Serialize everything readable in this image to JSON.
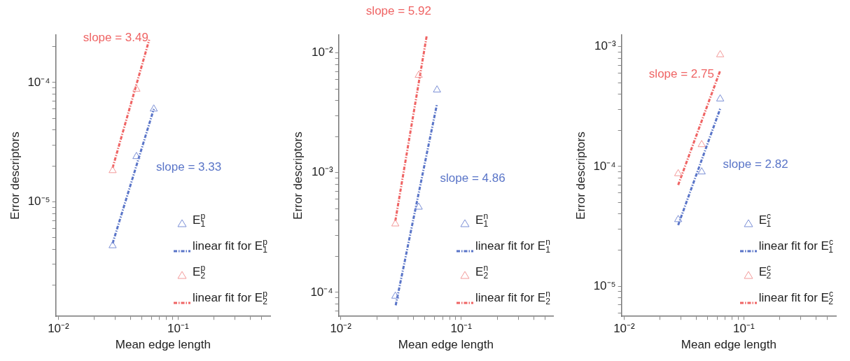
{
  "chart_data": [
    {
      "type": "scatter",
      "xlabel": "Mean edge length",
      "ylabel": "Error descriptors",
      "log": "xy",
      "grid": false,
      "legend": "bottom right",
      "xlim": [
        0.0095,
        0.59
      ],
      "ylim": [
        1.1e-06,
        0.00025
      ],
      "xticks": [
        {
          "value": 0.01,
          "label": "10⁻²"
        },
        {
          "value": 0.02,
          "label": null
        },
        {
          "value": 0.03,
          "label": null
        },
        {
          "value": 0.04,
          "label": null
        },
        {
          "value": 0.05,
          "label": null
        },
        {
          "value": 0.06,
          "label": null
        },
        {
          "value": 0.07,
          "label": null
        },
        {
          "value": 0.08,
          "label": null
        },
        {
          "value": 0.09,
          "label": null
        },
        {
          "value": 0.1,
          "label": "10⁻¹"
        },
        {
          "value": 0.2,
          "label": null
        },
        {
          "value": 0.3,
          "label": null
        },
        {
          "value": 0.4,
          "label": null
        },
        {
          "value": 0.5,
          "label": null
        }
      ],
      "yticks": [
        {
          "value": 2e-06,
          "label": null
        },
        {
          "value": 3e-06,
          "label": null
        },
        {
          "value": 4e-06,
          "label": null
        },
        {
          "value": 5e-06,
          "label": null
        },
        {
          "value": 6e-06,
          "label": null
        },
        {
          "value": 7e-06,
          "label": null
        },
        {
          "value": 8e-06,
          "label": null
        },
        {
          "value": 9e-06,
          "label": null
        },
        {
          "value": 1e-05,
          "label": "10⁻⁵"
        },
        {
          "value": 2e-05,
          "label": null
        },
        {
          "value": 3e-05,
          "label": null
        },
        {
          "value": 4e-05,
          "label": null
        },
        {
          "value": 5e-05,
          "label": null
        },
        {
          "value": 6e-05,
          "label": null
        },
        {
          "value": 7e-05,
          "label": null
        },
        {
          "value": 8e-05,
          "label": null
        },
        {
          "value": 9e-05,
          "label": null
        },
        {
          "value": 0.0001,
          "label": "10⁻⁴"
        },
        {
          "value": 0.0002,
          "label": null
        }
      ],
      "series": [
        {
          "name": "E$^{p}$$_{1}$",
          "type": "scatter",
          "marker": "triangle",
          "color": "#7b8fd6",
          "x": [
            0.0284,
            0.0449,
            0.0627
          ],
          "values": [
            4.3e-06,
            2.4e-05,
            6e-05
          ]
        },
        {
          "name": "linear fit for E$^{p}$$_{1}$",
          "type": "line",
          "line_style": "dashed",
          "color": "#5a75c8",
          "x": [
            0.0284,
            0.0627
          ],
          "values": [
            4.5e-06,
            6e-05
          ]
        },
        {
          "name": "E$^{p}$$_{2}$",
          "type": "scatter",
          "marker": "triangle",
          "color": "#f39a9a",
          "x": [
            0.0284,
            0.0449
          ],
          "values": [
            1.83e-05,
            8.8e-05
          ]
        },
        {
          "name": "linear fit for E$^{p}$$_{2}$",
          "type": "line",
          "line_style": "dashed",
          "color": "#ef6464",
          "x": [
            0.0284,
            0.0574
          ],
          "values": [
            1.93e-05,
            0.000228
          ]
        }
      ],
      "annotations": [
        "slope = 3.33",
        "slope = 3.49"
      ]
    },
    {
      "type": "scatter",
      "xlabel": "Mean edge length",
      "ylabel": "Error descriptors",
      "log": "xy",
      "grid": false,
      "legend": "bottom right",
      "xlim": [
        0.0096,
        0.58
      ],
      "ylim": [
        6.3e-05,
        0.0141
      ],
      "xticks": [
        {
          "value": 0.01,
          "label": "10⁻²"
        },
        {
          "value": 0.02,
          "label": null
        },
        {
          "value": 0.03,
          "label": null
        },
        {
          "value": 0.04,
          "label": null
        },
        {
          "value": 0.05,
          "label": null
        },
        {
          "value": 0.06,
          "label": null
        },
        {
          "value": 0.07,
          "label": null
        },
        {
          "value": 0.08,
          "label": null
        },
        {
          "value": 0.09,
          "label": null
        },
        {
          "value": 0.1,
          "label": "10⁻¹"
        },
        {
          "value": 0.2,
          "label": null
        },
        {
          "value": 0.3,
          "label": null
        },
        {
          "value": 0.4,
          "label": null
        },
        {
          "value": 0.5,
          "label": null
        }
      ],
      "yticks": [
        {
          "value": 7e-05,
          "label": null
        },
        {
          "value": 8e-05,
          "label": null
        },
        {
          "value": 9e-05,
          "label": null
        },
        {
          "value": 0.0001,
          "label": "10⁻⁴"
        },
        {
          "value": 0.0002,
          "label": null
        },
        {
          "value": 0.0003,
          "label": null
        },
        {
          "value": 0.0004,
          "label": null
        },
        {
          "value": 0.0005,
          "label": null
        },
        {
          "value": 0.0006,
          "label": null
        },
        {
          "value": 0.0007,
          "label": null
        },
        {
          "value": 0.0008,
          "label": null
        },
        {
          "value": 0.0009,
          "label": null
        },
        {
          "value": 0.001,
          "label": "10⁻³"
        },
        {
          "value": 0.002,
          "label": null
        },
        {
          "value": 0.003,
          "label": null
        },
        {
          "value": 0.004,
          "label": null
        },
        {
          "value": 0.005,
          "label": null
        },
        {
          "value": 0.006,
          "label": null
        },
        {
          "value": 0.007,
          "label": null
        },
        {
          "value": 0.008,
          "label": null
        },
        {
          "value": 0.009,
          "label": null
        },
        {
          "value": 0.01,
          "label": "10⁻²"
        }
      ],
      "series": [
        {
          "name": "E$^{n}$$_{1}$",
          "type": "scatter",
          "marker": "triangle",
          "color": "#7b8fd6",
          "x": [
            0.0284,
            0.0444,
            0.063
          ],
          "values": [
            9.3e-05,
            0.000515,
            0.0049
          ]
        },
        {
          "name": "linear fit for E$^{n}$$_{1}$",
          "type": "line",
          "line_style": "dashed",
          "color": "#5a75c8",
          "x": [
            0.0286,
            0.063
          ],
          "values": [
            7.8e-05,
            0.00375
          ]
        },
        {
          "name": "E$^{n}$$_{2}$",
          "type": "scatter",
          "marker": "triangle",
          "color": "#f39a9a",
          "x": [
            0.0284,
            0.0444
          ],
          "values": [
            0.000373,
            0.0065
          ]
        },
        {
          "name": "linear fit for E$^{n}$$_{2}$",
          "type": "line",
          "line_style": "dashed",
          "color": "#ef6464",
          "x": [
            0.0284,
            0.0518
          ],
          "values": [
            0.000395,
            0.014
          ]
        }
      ],
      "annotations": [
        "slope = 4.86",
        "slope = 5.92"
      ]
    },
    {
      "type": "scatter",
      "xlabel": "Mean edge length",
      "ylabel": "Error descriptors",
      "log": "xy",
      "grid": false,
      "legend": "bottom right",
      "xlim": [
        0.0095,
        0.59
      ],
      "ylim": [
        5.6e-06,
        0.00125
      ],
      "xticks": [
        {
          "value": 0.01,
          "label": "10⁻²"
        },
        {
          "value": 0.02,
          "label": null
        },
        {
          "value": 0.03,
          "label": null
        },
        {
          "value": 0.04,
          "label": null
        },
        {
          "value": 0.05,
          "label": null
        },
        {
          "value": 0.06,
          "label": null
        },
        {
          "value": 0.07,
          "label": null
        },
        {
          "value": 0.08,
          "label": null
        },
        {
          "value": 0.09,
          "label": null
        },
        {
          "value": 0.1,
          "label": "10⁻¹"
        },
        {
          "value": 0.2,
          "label": null
        },
        {
          "value": 0.3,
          "label": null
        },
        {
          "value": 0.4,
          "label": null
        },
        {
          "value": 0.5,
          "label": null
        }
      ],
      "yticks": [
        {
          "value": 6e-06,
          "label": null
        },
        {
          "value": 7e-06,
          "label": null
        },
        {
          "value": 8e-06,
          "label": null
        },
        {
          "value": 9e-06,
          "label": null
        },
        {
          "value": 1e-05,
          "label": "10⁻⁵"
        },
        {
          "value": 2e-05,
          "label": null
        },
        {
          "value": 3e-05,
          "label": null
        },
        {
          "value": 4e-05,
          "label": null
        },
        {
          "value": 5e-05,
          "label": null
        },
        {
          "value": 6e-05,
          "label": null
        },
        {
          "value": 7e-05,
          "label": null
        },
        {
          "value": 8e-05,
          "label": null
        },
        {
          "value": 9e-05,
          "label": null
        },
        {
          "value": 0.0001,
          "label": "10⁻⁴"
        },
        {
          "value": 0.0002,
          "label": null
        },
        {
          "value": 0.0003,
          "label": null
        },
        {
          "value": 0.0004,
          "label": null
        },
        {
          "value": 0.0005,
          "label": null
        },
        {
          "value": 0.0006,
          "label": null
        },
        {
          "value": 0.0007,
          "label": null
        },
        {
          "value": 0.0008,
          "label": null
        },
        {
          "value": 0.0009,
          "label": null
        },
        {
          "value": 0.001,
          "label": "10⁻³"
        }
      ],
      "series": [
        {
          "name": "E$^{c}$$_{1}$",
          "type": "scatter",
          "marker": "triangle",
          "color": "#7b8fd6",
          "x": [
            0.0283,
            0.0445,
            0.0635
          ],
          "values": [
            3.6e-05,
            9e-05,
            0.000366
          ]
        },
        {
          "name": "linear fit for E$^{c}$$_{1}$",
          "type": "line",
          "line_style": "dashed",
          "color": "#5a75c8",
          "x": [
            0.0283,
            0.0635
          ],
          "values": [
            3.24e-05,
            0.000303
          ]
        },
        {
          "name": "E$^{c}$$_{2}$",
          "type": "scatter",
          "marker": "triangle",
          "color": "#f39a9a",
          "x": [
            0.0283,
            0.0445,
            0.0635
          ],
          "values": [
            8.7e-05,
            0.000152,
            0.000856
          ]
        },
        {
          "name": "linear fit for E$^{c}$$_{2}$",
          "type": "line",
          "line_style": "dashed",
          "color": "#ef6464",
          "x": [
            0.0283,
            0.0635
          ],
          "values": [
            7e-05,
            0.00063
          ]
        }
      ],
      "annotations": [
        "slope = 2.82",
        "slope = 2.75"
      ]
    }
  ]
}
